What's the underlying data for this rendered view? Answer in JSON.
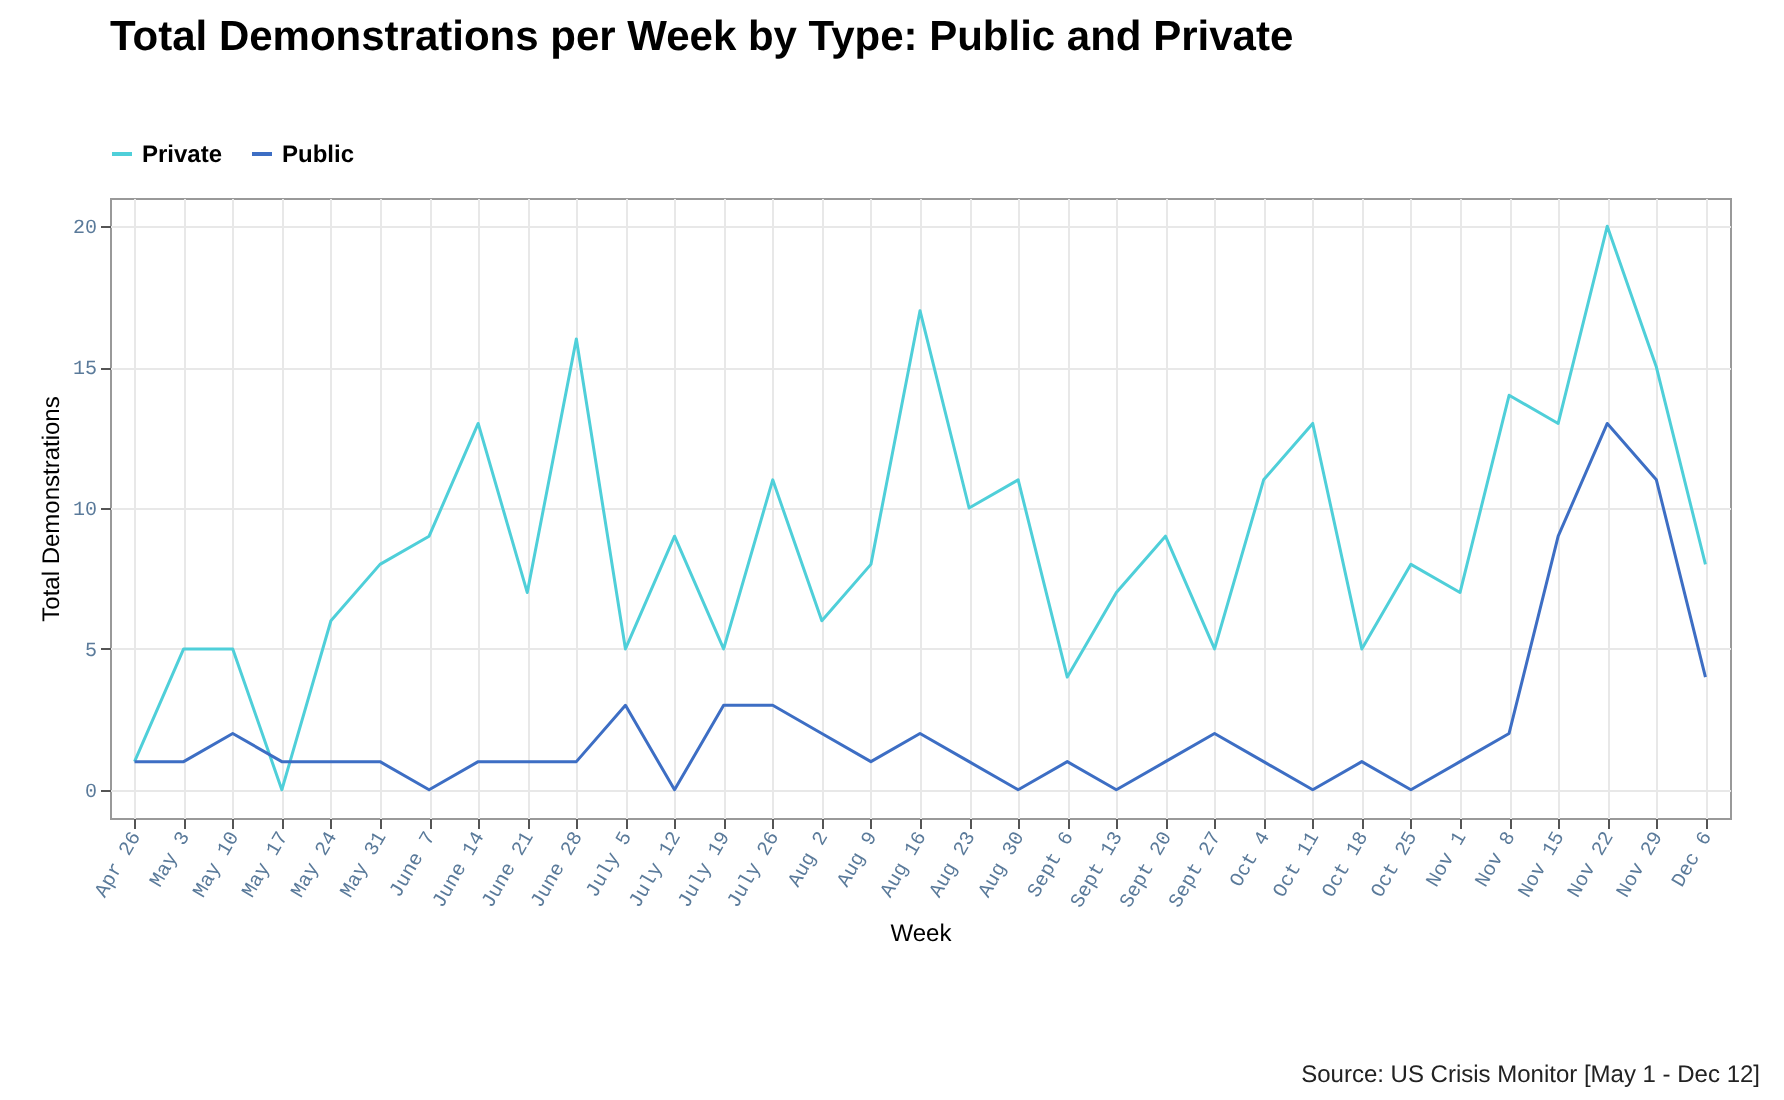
{
  "chart_data": {
    "type": "line",
    "title": "Total Demonstrations per Week by Type: Public and Private",
    "xlabel": "Week",
    "ylabel": "Total Demonstrations",
    "categories": [
      "Apr 26",
      "May 3",
      "May 10",
      "May 17",
      "May 24",
      "May 31",
      "June 7",
      "June 14",
      "June 21",
      "June 28",
      "July 5",
      "July 12",
      "July 19",
      "July 26",
      "Aug 2",
      "Aug 9",
      "Aug 16",
      "Aug 23",
      "Aug 30",
      "Sept 6",
      "Sept 13",
      "Sept 20",
      "Sept 27",
      "Oct 4",
      "Oct 11",
      "Oct 18",
      "Oct 25",
      "Nov 1",
      "Nov 8",
      "Nov 15",
      "Nov 22",
      "Nov 29",
      "Dec 6"
    ],
    "series": [
      {
        "name": "Private",
        "color": "#4fcfd9",
        "values": [
          1,
          5,
          5,
          0,
          6,
          8,
          9,
          13,
          7,
          16,
          5,
          9,
          5,
          11,
          6,
          8,
          17,
          10,
          11,
          4,
          7,
          9,
          5,
          11,
          13,
          5,
          8,
          7,
          14,
          13,
          20,
          15,
          8
        ]
      },
      {
        "name": "Public",
        "color": "#3d6ec4",
        "values": [
          1,
          1,
          2,
          1,
          1,
          1,
          0,
          1,
          1,
          1,
          3,
          0,
          3,
          3,
          2,
          1,
          2,
          1,
          0,
          1,
          0,
          1,
          2,
          1,
          0,
          1,
          0,
          1,
          2,
          9,
          13,
          11,
          4
        ]
      }
    ],
    "ylim": [
      -1,
      21
    ],
    "yticks": [
      0,
      5,
      10,
      15,
      20
    ],
    "grid": true,
    "legend": "top left",
    "marker": "none",
    "line_style": "solid",
    "annotations": [
      "Source: US Crisis Monitor [May 1 - Dec 12]"
    ]
  }
}
